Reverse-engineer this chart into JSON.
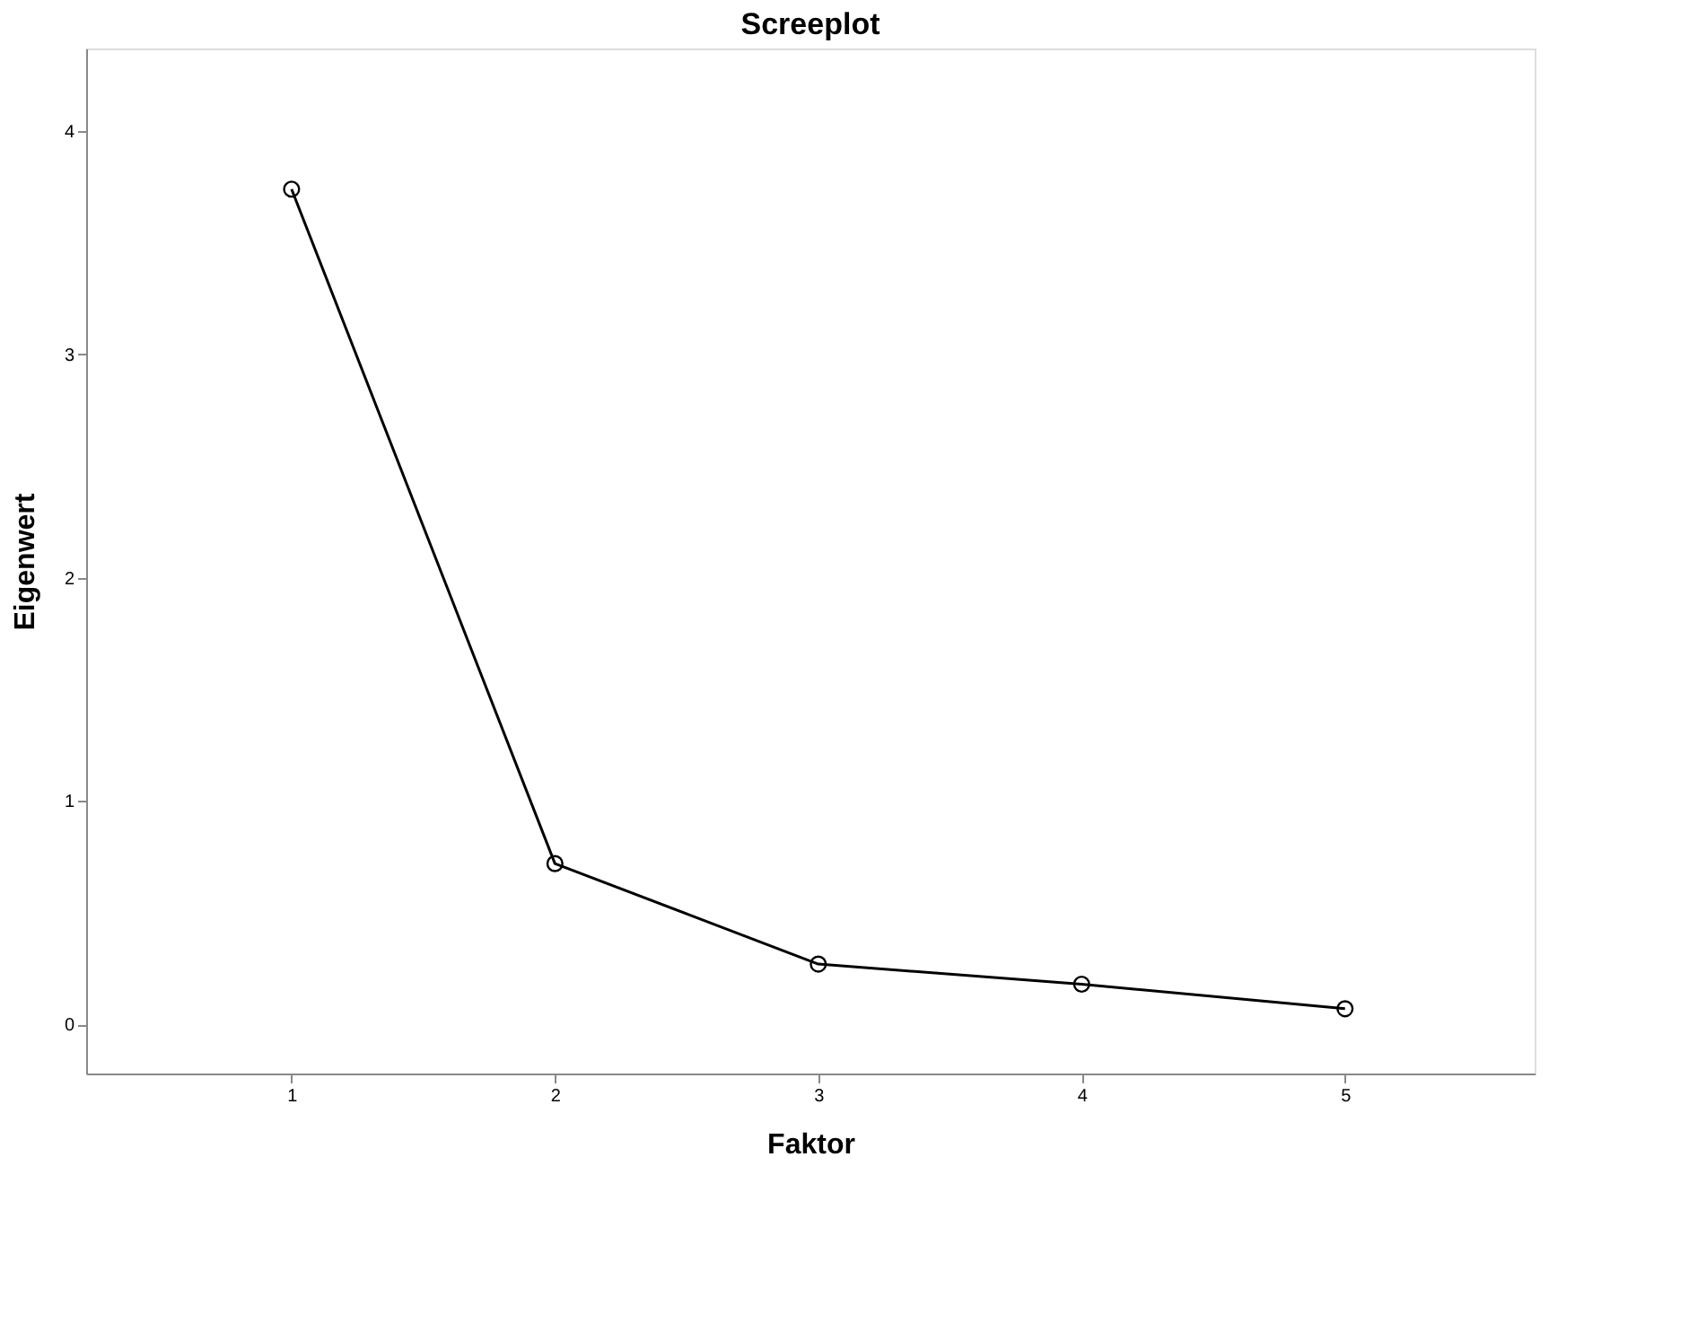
{
  "chart_data": {
    "type": "line",
    "title": "Screeplot",
    "xlabel": "Faktor",
    "ylabel": "Eigenwert",
    "x": [
      1,
      2,
      3,
      4,
      5
    ],
    "series": [
      {
        "color": "#000000",
        "values": [
          3.74,
          0.72,
          0.27,
          0.18,
          0.07
        ]
      }
    ],
    "xlim": [
      0.22,
      5.72
    ],
    "xticks": [
      1,
      2,
      3,
      4,
      5
    ],
    "ylim": [
      -0.22,
      4.37
    ],
    "yticks": [
      0,
      1,
      2,
      3,
      4
    ],
    "grid": false,
    "marker": "circle",
    "line_style": "solid"
  }
}
